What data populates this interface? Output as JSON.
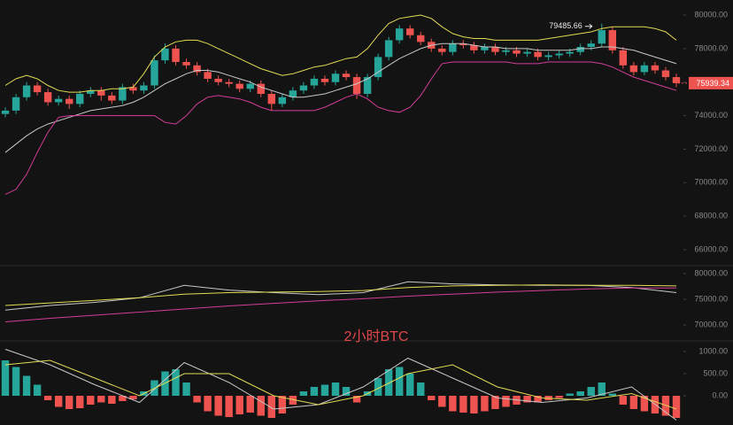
{
  "chart_data": [
    {
      "type": "candlestick",
      "open": [
        74100,
        74300,
        75100,
        75800,
        75400,
        74800,
        75000,
        74700,
        75300,
        75500,
        75200,
        74900,
        75700,
        75500,
        75800,
        77300,
        78000,
        77200,
        77000,
        76600,
        76200,
        76000,
        75900,
        75600,
        75900,
        75300,
        74700,
        75100,
        75500,
        75800,
        76200,
        76000,
        76500,
        76300,
        75300,
        76300,
        77500,
        78500,
        79200,
        78800,
        78400,
        78000,
        77800,
        78300,
        78200,
        77900,
        78100,
        77800,
        77900,
        77700,
        77800,
        77500,
        77600,
        77700,
        77800,
        78100,
        78300,
        79100,
        77900,
        77000,
        76600,
        77000,
        76700,
        76300
      ],
      "high": [
        74500,
        75300,
        76000,
        76000,
        75600,
        75200,
        75200,
        75500,
        75700,
        75700,
        75400,
        75900,
        75900,
        76000,
        77600,
        78300,
        78200,
        77400,
        77200,
        76800,
        76400,
        76200,
        76100,
        76100,
        76100,
        75500,
        75300,
        75700,
        76000,
        76400,
        76400,
        76700,
        76700,
        76500,
        76500,
        77700,
        78700,
        79400,
        79400,
        79000,
        78600,
        78200,
        78500,
        78500,
        78400,
        78300,
        78300,
        78100,
        78100,
        78000,
        78000,
        77800,
        77900,
        78000,
        78300,
        78500,
        79485.66,
        79300,
        78100,
        77200,
        77200,
        77200,
        76900,
        76500
      ],
      "low": [
        73900,
        74100,
        74900,
        75200,
        74600,
        74600,
        74400,
        74500,
        75100,
        74900,
        74700,
        74700,
        75300,
        75300,
        75600,
        77100,
        77000,
        76800,
        76400,
        76000,
        75800,
        75700,
        75400,
        75400,
        75100,
        74300,
        74500,
        74900,
        75300,
        75600,
        75800,
        75800,
        76100,
        75000,
        75100,
        76100,
        77300,
        78300,
        78600,
        78200,
        77800,
        77600,
        77600,
        78000,
        77700,
        77700,
        77600,
        77600,
        77500,
        77500,
        77300,
        77300,
        77400,
        77500,
        77600,
        77900,
        78100,
        77700,
        76800,
        76400,
        76400,
        76500,
        76100,
        75700
      ],
      "close": [
        74300,
        75100,
        75800,
        75400,
        74800,
        75000,
        74700,
        75300,
        75500,
        75200,
        74900,
        75700,
        75500,
        75800,
        77300,
        78000,
        77200,
        77000,
        76600,
        76200,
        76000,
        75900,
        75600,
        75900,
        75300,
        74700,
        75100,
        75500,
        75800,
        76200,
        76000,
        76500,
        76300,
        75300,
        76300,
        77500,
        78500,
        79200,
        78800,
        78400,
        78000,
        77800,
        78300,
        78200,
        77900,
        78100,
        77800,
        77900,
        77700,
        77800,
        77500,
        77600,
        77700,
        77800,
        78100,
        78300,
        79100,
        77900,
        77000,
        76600,
        77000,
        76700,
        76300,
        75939.34
      ],
      "up_color": "#26a69a",
      "down_color": "#ef5350",
      "series": [
        {
          "color": "#e3db55",
          "values": [
            75800,
            76200,
            76400,
            76200,
            75800,
            75500,
            75400,
            75400,
            75500,
            75500,
            75600,
            75600,
            75700,
            76500,
            77500,
            78100,
            78400,
            78500,
            78500,
            78300,
            78000,
            77700,
            77400,
            77100,
            76800,
            76600,
            76400,
            76500,
            76700,
            76900,
            77000,
            77200,
            77400,
            77500,
            78000,
            78800,
            79500,
            79800,
            79900,
            80000,
            79800,
            79300,
            78900,
            78700,
            78600,
            78600,
            78500,
            78500,
            78500,
            78500,
            78500,
            78600,
            78700,
            78800,
            78900,
            79000,
            79200,
            79300,
            79300,
            79300,
            79300,
            79200,
            79000,
            78500
          ]
        },
        {
          "color": "#c8c8c8",
          "values": [
            71800,
            72300,
            72800,
            73200,
            73500,
            73700,
            73900,
            74100,
            74300,
            74400,
            74500,
            74600,
            74800,
            75100,
            75500,
            75900,
            76200,
            76500,
            76700,
            76700,
            76600,
            76400,
            76200,
            76000,
            75700,
            75500,
            75300,
            75100,
            75100,
            75200,
            75300,
            75500,
            75700,
            75900,
            76200,
            76600,
            77000,
            77400,
            77700,
            78000,
            78200,
            78300,
            78300,
            78300,
            78200,
            78100,
            78100,
            78000,
            78000,
            78000,
            77900,
            77900,
            77900,
            77900,
            78000,
            78000,
            78100,
            78100,
            78000,
            77900,
            77700,
            77500,
            77300,
            77100
          ]
        },
        {
          "color": "#d23d98",
          "values": [
            69300,
            69600,
            70500,
            71800,
            73000,
            73900,
            74000,
            74000,
            74000,
            74000,
            74000,
            74000,
            74000,
            74000,
            74000,
            73600,
            73500,
            74000,
            74700,
            75100,
            75200,
            75100,
            75000,
            74800,
            74500,
            74300,
            74300,
            74300,
            74300,
            74300,
            74500,
            74800,
            75100,
            75300,
            75000,
            74500,
            74300,
            74200,
            74500,
            75200,
            76200,
            77100,
            77200,
            77200,
            77200,
            77200,
            77200,
            77200,
            77100,
            77100,
            77100,
            77200,
            77200,
            77200,
            77200,
            77200,
            77100,
            76900,
            76600,
            76300,
            76100,
            75900,
            75700,
            75500
          ]
        }
      ],
      "ylim": [
        65050,
        80900
      ],
      "yticks": [
        {
          "value": 66000,
          "label": "66000.00"
        },
        {
          "value": 68000,
          "label": "68000.00"
        },
        {
          "value": 70000,
          "label": "70000.00"
        },
        {
          "value": 72000,
          "label": "72000.00"
        },
        {
          "value": 74000,
          "label": "74000.00"
        },
        {
          "value": 76000,
          "label": "76000.00"
        },
        {
          "value": 78000,
          "label": "78000.00"
        },
        {
          "value": 80000,
          "label": "80000.00"
        }
      ],
      "high_marker": 79485.66,
      "last_price": 75939.34
    },
    {
      "type": "line",
      "series": [
        {
          "color": "#c8c8c8",
          "values": [
            72900,
            73800,
            74400,
            75300,
            77700,
            76800,
            76300,
            75900,
            76300,
            78400,
            78000,
            77800,
            77700,
            77700,
            77300,
            76300
          ]
        },
        {
          "color": "#e3db55",
          "values": [
            73800,
            74300,
            74800,
            75300,
            76000,
            76300,
            76400,
            76500,
            76700,
            77300,
            77600,
            77700,
            77800,
            77700,
            77700,
            77600
          ]
        },
        {
          "color": "#d23d98",
          "values": [
            70600,
            71300,
            71900,
            72500,
            73100,
            73700,
            74200,
            74700,
            75100,
            75600,
            76000,
            76400,
            76700,
            77000,
            77200,
            77200
          ]
        }
      ],
      "ylim": [
        66900,
        81550
      ],
      "yticks": [
        {
          "value": 70000,
          "label": "70000.00"
        },
        {
          "value": 75000,
          "label": "75000.00"
        },
        {
          "value": 80000,
          "label": "80000.00"
        }
      ],
      "annotation": "2小时BTC"
    },
    {
      "type": "macd",
      "values": [
        800,
        650,
        450,
        250,
        -100,
        -250,
        -300,
        -280,
        -200,
        -150,
        -180,
        -120,
        -80,
        100,
        350,
        550,
        600,
        300,
        -150,
        -350,
        -450,
        -480,
        -420,
        -380,
        -450,
        -500,
        -400,
        -200,
        100,
        200,
        250,
        300,
        200,
        -150,
        100,
        400,
        600,
        650,
        500,
        300,
        -100,
        -250,
        -350,
        -380,
        -400,
        -350,
        -300,
        -250,
        -200,
        -150,
        -150,
        -100,
        -50,
        50,
        100,
        200,
        300,
        50,
        -200,
        -300,
        -350,
        -400,
        -450,
        -500
      ],
      "up_color": "#26a69a",
      "down_color": "#ef5350",
      "series": [
        {
          "color": "#c8c8c8",
          "values": [
            1050,
            700,
            250,
            -150,
            750,
            300,
            -300,
            -200,
            200,
            850,
            400,
            -50,
            -150,
            -50,
            200,
            -550
          ]
        },
        {
          "color": "#e3db55",
          "values": [
            700,
            800,
            400,
            0,
            500,
            500,
            0,
            -200,
            0,
            500,
            700,
            200,
            -50,
            -100,
            50,
            -300
          ]
        }
      ],
      "ylim": [
        -660,
        1240
      ],
      "yticks": [
        {
          "value": 0,
          "label": "0.00"
        },
        {
          "value": 500,
          "label": "500.00"
        },
        {
          "value": 1000,
          "label": "1000.00"
        }
      ]
    }
  ]
}
